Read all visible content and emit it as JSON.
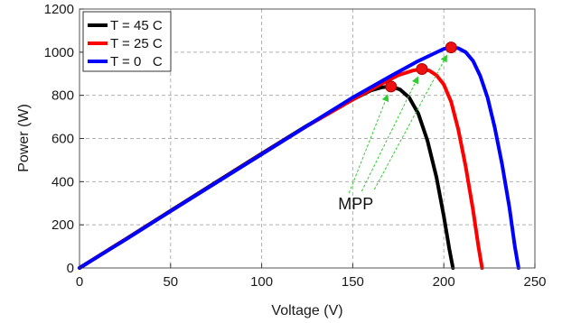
{
  "chart_data": {
    "type": "line",
    "xlabel": "Voltage (V)",
    "ylabel": "Power (W)",
    "xlim": [
      0,
      250
    ],
    "ylim": [
      0,
      1200
    ],
    "xticks": [
      0,
      50,
      100,
      150,
      200,
      250
    ],
    "yticks": [
      0,
      200,
      400,
      600,
      800,
      1000,
      1200
    ],
    "grid": true,
    "legend_position": "top-left",
    "series": [
      {
        "name": "T = 45 C",
        "color": "#000000",
        "x": [
          0,
          25,
          50,
          75,
          100,
          125,
          150,
          160,
          166,
          171,
          176,
          181,
          186,
          191,
          196,
          200,
          203,
          205
        ],
        "y": [
          0,
          132,
          265,
          398,
          530,
          660,
          780,
          823,
          837,
          841,
          827,
          790,
          715,
          590,
          420,
          240,
          90,
          0
        ],
        "mpp": {
          "x": 171,
          "y": 841
        }
      },
      {
        "name": "T = 25 C",
        "color": "#ff0000",
        "x": [
          0,
          25,
          50,
          75,
          100,
          125,
          150,
          165,
          175,
          183,
          188,
          192,
          196,
          200,
          204,
          208,
          212,
          216,
          219,
          221
        ],
        "y": [
          0,
          131,
          264,
          396,
          528,
          658,
          780,
          850,
          893,
          915,
          922,
          915,
          893,
          850,
          770,
          640,
          470,
          270,
          100,
          0
        ],
        "mpp": {
          "x": 188,
          "y": 922
        }
      },
      {
        "name": "T = 0   C",
        "color": "#0000ff",
        "x": [
          0,
          25,
          50,
          75,
          100,
          125,
          150,
          170,
          185,
          195,
          200,
          204,
          208,
          212,
          216,
          220,
          224,
          228,
          232,
          236,
          239,
          241
        ],
        "y": [
          0,
          130,
          263,
          395,
          527,
          659,
          790,
          885,
          955,
          995,
          1015,
          1022,
          1018,
          1000,
          960,
          890,
          790,
          650,
          480,
          280,
          100,
          0
        ],
        "mpp": {
          "x": 204,
          "y": 1022
        }
      }
    ],
    "annotations": [
      {
        "text": "MPP",
        "x": 142,
        "y": 305
      }
    ]
  }
}
